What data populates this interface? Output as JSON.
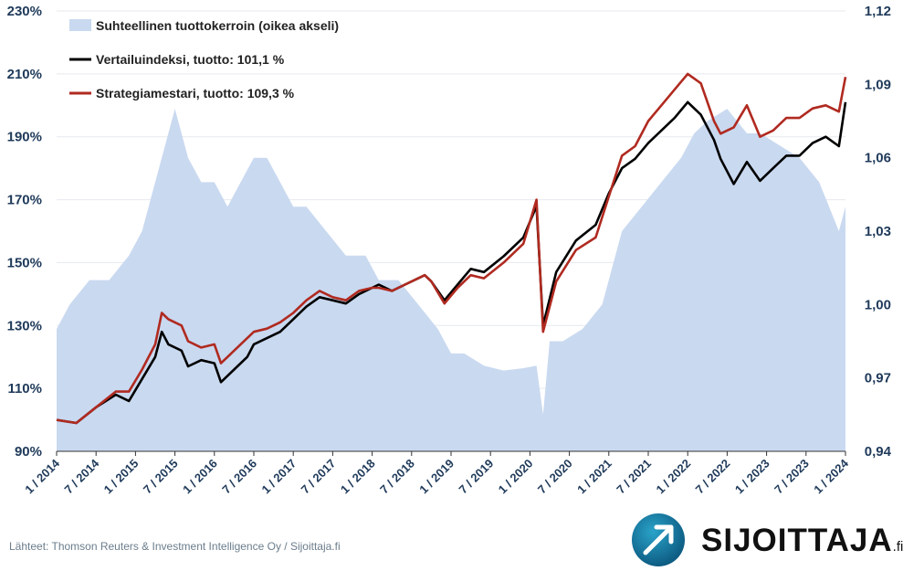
{
  "chart_data": {
    "type": "line",
    "title": "",
    "left_axis": {
      "ticks": [
        "90%",
        "110%",
        "130%",
        "150%",
        "170%",
        "190%",
        "210%",
        "230%"
      ],
      "range": [
        0.9,
        2.3
      ]
    },
    "right_axis": {
      "ticks": [
        "0,94",
        "0,97",
        "1,00",
        "1,03",
        "1,06",
        "1,09",
        "1,12"
      ],
      "range": [
        0.94,
        1.12
      ]
    },
    "x_ticks": [
      "1 / 2014",
      "7 / 2014",
      "1 / 2015",
      "7 / 2015",
      "1 / 2016",
      "7 / 2016",
      "1 / 2017",
      "7 / 2017",
      "1 / 2018",
      "7 / 2018",
      "1 / 2019",
      "7 / 2019",
      "1 / 2020",
      "7 / 2020",
      "1 / 2021",
      "7 / 2021",
      "1 / 2022",
      "7 / 2022",
      "1 / 2023",
      "7 / 2023",
      "1 / 2024"
    ],
    "x_range": [
      "2014-01",
      "2024-01"
    ],
    "legend_position": "top-left",
    "grid": "horizontal",
    "series": [
      {
        "name": "Suhteellinen tuottokerroin (oikea akseli)",
        "type": "area",
        "axis": "right",
        "color": "#c9d9f0",
        "x": [
          "2014-01",
          "2014-03",
          "2014-06",
          "2014-09",
          "2014-12",
          "2015-02",
          "2015-04",
          "2015-06",
          "2015-07",
          "2015-09",
          "2015-11",
          "2016-01",
          "2016-03",
          "2016-05",
          "2016-07",
          "2016-09",
          "2016-11",
          "2017-01",
          "2017-03",
          "2017-06",
          "2017-09",
          "2017-12",
          "2018-02",
          "2018-05",
          "2018-08",
          "2018-11",
          "2019-01",
          "2019-03",
          "2019-06",
          "2019-09",
          "2019-12",
          "2020-02",
          "2020-03",
          "2020-04",
          "2020-06",
          "2020-09",
          "2020-12",
          "2021-03",
          "2021-06",
          "2021-09",
          "2021-12",
          "2022-02",
          "2022-04",
          "2022-07",
          "2022-10",
          "2022-12",
          "2023-03",
          "2023-06",
          "2023-09",
          "2023-12",
          "2024-01"
        ],
        "values": [
          0.99,
          1.0,
          1.01,
          1.01,
          1.02,
          1.03,
          1.05,
          1.07,
          1.08,
          1.06,
          1.05,
          1.05,
          1.04,
          1.05,
          1.06,
          1.06,
          1.05,
          1.04,
          1.04,
          1.03,
          1.02,
          1.02,
          1.01,
          1.01,
          1.0,
          0.99,
          0.98,
          0.98,
          0.975,
          0.973,
          0.974,
          0.975,
          0.955,
          0.985,
          0.985,
          0.99,
          1.0,
          1.03,
          1.04,
          1.05,
          1.06,
          1.07,
          1.075,
          1.08,
          1.07,
          1.07,
          1.065,
          1.06,
          1.05,
          1.03,
          1.04
        ]
      },
      {
        "name": "Vertailuindeksi, tuotto: 101,1 %",
        "type": "line",
        "axis": "left",
        "color": "#000000",
        "x": [
          "2014-01",
          "2014-04",
          "2014-07",
          "2014-10",
          "2014-12",
          "2015-02",
          "2015-04",
          "2015-05",
          "2015-06",
          "2015-08",
          "2015-09",
          "2015-11",
          "2016-01",
          "2016-02",
          "2016-04",
          "2016-06",
          "2016-07",
          "2016-09",
          "2016-11",
          "2017-01",
          "2017-03",
          "2017-05",
          "2017-07",
          "2017-09",
          "2017-11",
          "2018-01",
          "2018-02",
          "2018-04",
          "2018-06",
          "2018-09",
          "2018-10",
          "2018-12",
          "2019-02",
          "2019-04",
          "2019-06",
          "2019-09",
          "2019-12",
          "2020-02",
          "2020-03",
          "2020-05",
          "2020-08",
          "2020-11",
          "2021-01",
          "2021-03",
          "2021-05",
          "2021-07",
          "2021-09",
          "2021-11",
          "2022-01",
          "2022-03",
          "2022-05",
          "2022-06",
          "2022-08",
          "2022-10",
          "2022-12",
          "2023-02",
          "2023-04",
          "2023-06",
          "2023-08",
          "2023-10",
          "2023-12",
          "2024-01"
        ],
        "values": [
          1.0,
          0.99,
          1.04,
          1.08,
          1.06,
          1.13,
          1.2,
          1.28,
          1.24,
          1.22,
          1.17,
          1.19,
          1.18,
          1.12,
          1.16,
          1.2,
          1.24,
          1.26,
          1.28,
          1.32,
          1.36,
          1.39,
          1.38,
          1.37,
          1.4,
          1.42,
          1.43,
          1.41,
          1.43,
          1.46,
          1.44,
          1.38,
          1.43,
          1.48,
          1.47,
          1.52,
          1.58,
          1.68,
          1.3,
          1.47,
          1.57,
          1.62,
          1.72,
          1.8,
          1.83,
          1.88,
          1.92,
          1.96,
          2.01,
          1.97,
          1.89,
          1.83,
          1.75,
          1.82,
          1.76,
          1.8,
          1.84,
          1.84,
          1.88,
          1.9,
          1.87,
          2.01
        ]
      },
      {
        "name": "Strategiamestari, tuotto: 109,3 %",
        "type": "line",
        "axis": "left",
        "color": "#b02a20",
        "x": [
          "2014-01",
          "2014-04",
          "2014-07",
          "2014-10",
          "2014-12",
          "2015-02",
          "2015-04",
          "2015-05",
          "2015-06",
          "2015-08",
          "2015-09",
          "2015-11",
          "2016-01",
          "2016-02",
          "2016-04",
          "2016-06",
          "2016-07",
          "2016-09",
          "2016-11",
          "2017-01",
          "2017-03",
          "2017-05",
          "2017-07",
          "2017-09",
          "2017-11",
          "2018-01",
          "2018-02",
          "2018-04",
          "2018-06",
          "2018-09",
          "2018-10",
          "2018-12",
          "2019-02",
          "2019-04",
          "2019-06",
          "2019-09",
          "2019-12",
          "2020-02",
          "2020-03",
          "2020-05",
          "2020-08",
          "2020-11",
          "2021-01",
          "2021-03",
          "2021-05",
          "2021-07",
          "2021-09",
          "2021-11",
          "2022-01",
          "2022-03",
          "2022-05",
          "2022-06",
          "2022-08",
          "2022-10",
          "2022-12",
          "2023-02",
          "2023-04",
          "2023-06",
          "2023-08",
          "2023-10",
          "2023-12",
          "2024-01"
        ],
        "values": [
          1.0,
          0.99,
          1.04,
          1.09,
          1.09,
          1.16,
          1.24,
          1.34,
          1.32,
          1.3,
          1.25,
          1.23,
          1.24,
          1.18,
          1.22,
          1.26,
          1.28,
          1.29,
          1.31,
          1.34,
          1.38,
          1.41,
          1.39,
          1.38,
          1.41,
          1.42,
          1.42,
          1.41,
          1.43,
          1.46,
          1.44,
          1.37,
          1.42,
          1.46,
          1.45,
          1.5,
          1.56,
          1.7,
          1.28,
          1.44,
          1.54,
          1.58,
          1.71,
          1.84,
          1.87,
          1.95,
          2.0,
          2.05,
          2.1,
          2.07,
          1.95,
          1.91,
          1.93,
          2.0,
          1.9,
          1.92,
          1.96,
          1.96,
          1.99,
          2.0,
          1.98,
          2.09
        ]
      }
    ]
  },
  "source": "Lähteet: Thomson Reuters & Investment Intelligence Oy / Sijoittaja.fi",
  "logo": {
    "text": "SIJOITTAJA",
    "suffix": ".fi"
  }
}
